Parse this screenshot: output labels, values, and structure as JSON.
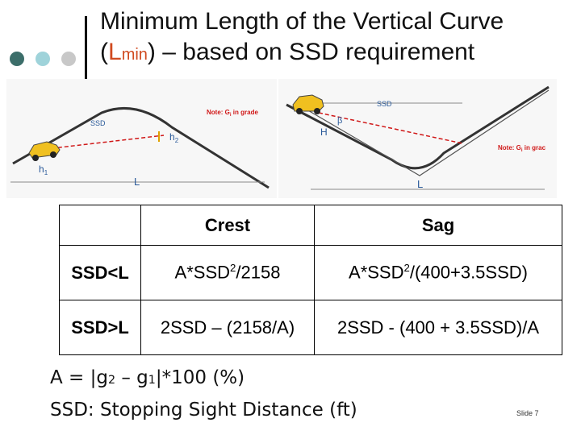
{
  "title": {
    "line1": "Minimum Length of the Vertical Curve",
    "line2_open": "(",
    "line2_L": "L",
    "line2_sub": "min",
    "line2_rest": ") – based on SSD requirement"
  },
  "dot_colors": [
    "#3c6e6a",
    "#9fd3da",
    "#c8c8c8"
  ],
  "crest_diagram": {
    "note": "Note: G",
    "note_sub": "i",
    "note_rest": " in grade",
    "ssd_label": "SSD",
    "h2_label": "h",
    "h2_sub": "2",
    "h1_label": "h",
    "h1_sub": "1",
    "l_label": "L"
  },
  "sag_diagram": {
    "note": "Note: G",
    "note_sub": "i",
    "note_rest": " in grac",
    "ssd_label": "SSD",
    "h_label": "H",
    "beta_label": "β",
    "l_label": "L"
  },
  "table": {
    "header": [
      "",
      "Crest",
      "Sag"
    ],
    "row1_label": "SSD<L",
    "row1_crest": "A*SSD",
    "row1_crest_sup": "2",
    "row1_crest_rest": "/2158",
    "row1_sag": "A*SSD",
    "row1_sag_sup": "2",
    "row1_sag_rest": "/(400+3.5SSD)",
    "row2_label": "SSD>L",
    "row2_crest": "2SSD – (2158/A)",
    "row2_sag": "2SSD - (400 + 3.5SSD)/A"
  },
  "formula_a": {
    "a": "A = |g",
    "sub2": "2",
    "mid": " – g",
    "sub1": "1",
    "rest": "|*100 (%)"
  },
  "formula_ssd": "SSD: Stopping Sight Distance (ft)",
  "slide": "Slide 7"
}
